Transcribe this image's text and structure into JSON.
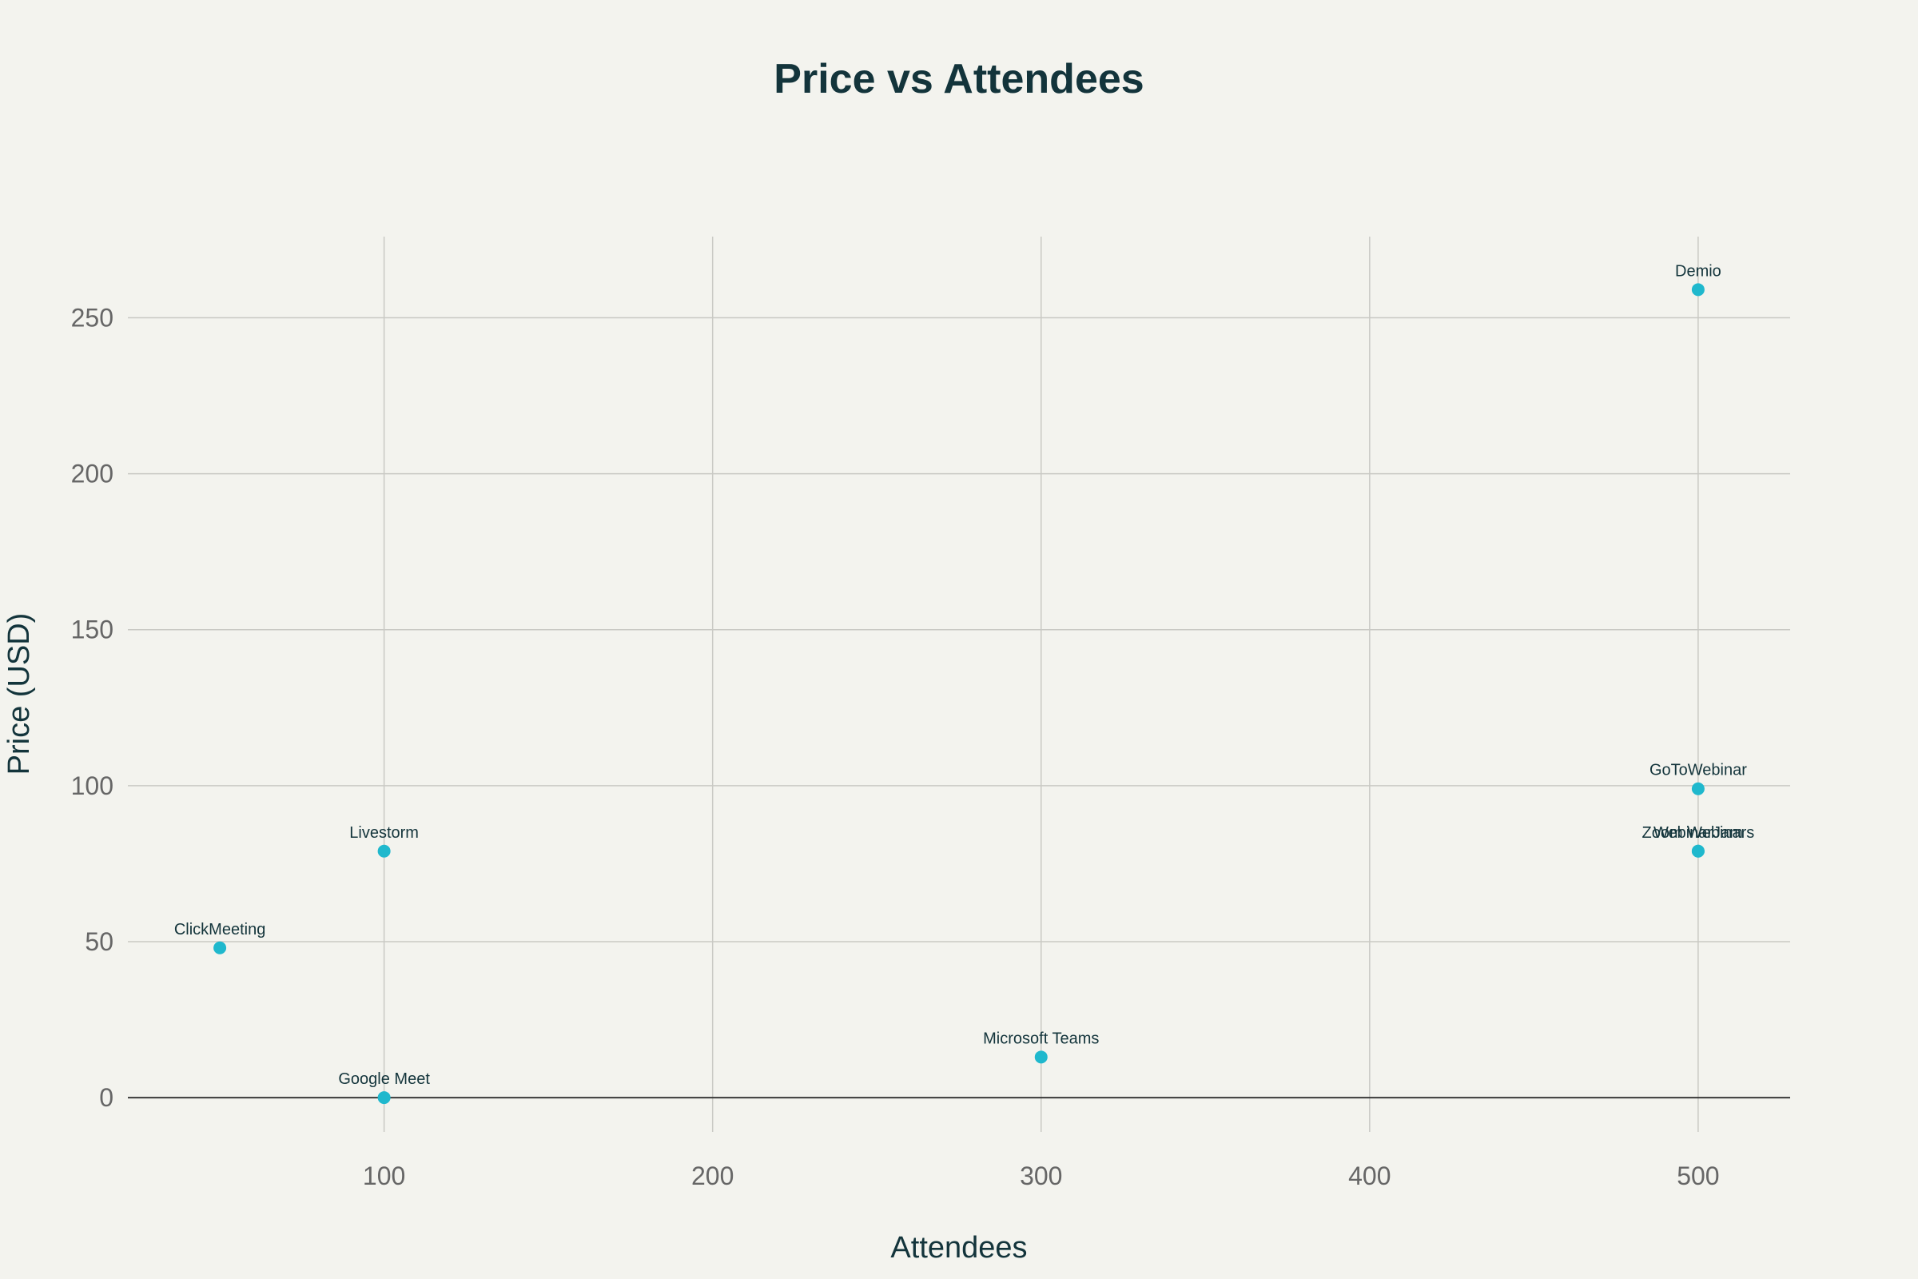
{
  "chart_data": {
    "type": "scatter",
    "title": "Price vs Attendees",
    "xlabel": "Attendees",
    "ylabel": "Price (USD)",
    "xlim": [
      22,
      528
    ],
    "ylim": [
      -11,
      276
    ],
    "x_ticks": [
      100,
      200,
      300,
      400,
      500
    ],
    "y_ticks": [
      0,
      50,
      100,
      150,
      200,
      250
    ],
    "grid": true,
    "legend": "none",
    "marker_color": "#1fb8cd",
    "points": [
      {
        "label": "Demio",
        "x": 500,
        "y": 259
      },
      {
        "label": "GoToWebinar",
        "x": 500,
        "y": 99
      },
      {
        "label": "Zoom Webinars",
        "x": 500,
        "y": 79
      },
      {
        "label": "WebinarJam",
        "x": 500,
        "y": 79
      },
      {
        "label": "Livestorm",
        "x": 100,
        "y": 79
      },
      {
        "label": "ClickMeeting",
        "x": 50,
        "y": 48
      },
      {
        "label": "Microsoft Teams",
        "x": 300,
        "y": 13
      },
      {
        "label": "Google Meet",
        "x": 100,
        "y": 0
      }
    ]
  }
}
